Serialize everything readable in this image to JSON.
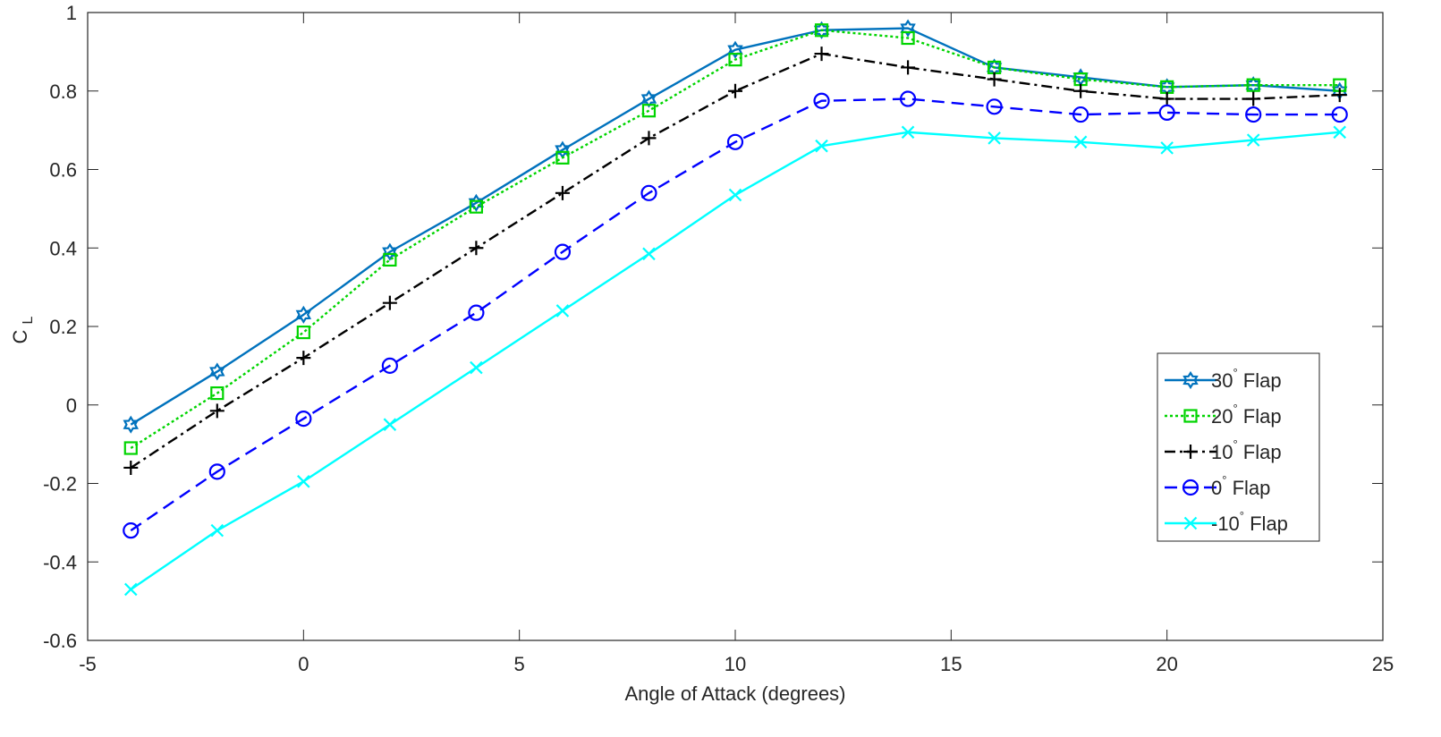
{
  "chart_data": {
    "type": "line",
    "title": "",
    "xlabel": "Angle of Attack (degrees)",
    "ylabel": "C",
    "ylabel_subscript": "L",
    "xlim": [
      -5,
      25
    ],
    "ylim": [
      -0.6,
      1
    ],
    "xticks": [
      -5,
      0,
      5,
      10,
      15,
      20,
      25
    ],
    "yticks": [
      -0.6,
      -0.4,
      -0.2,
      0,
      0.2,
      0.4,
      0.6,
      0.8,
      1
    ],
    "xtick_labels": [
      "-5",
      "0",
      "5",
      "10",
      "15",
      "20",
      "25"
    ],
    "ytick_labels": [
      "-0.6",
      "-0.4",
      "-0.2",
      "0",
      "0.2",
      "0.4",
      "0.6",
      "0.8",
      "1"
    ],
    "grid": false,
    "legend_position": "right",
    "x": [
      -4,
      -2,
      0,
      2,
      4,
      6,
      8,
      10,
      12,
      14,
      16,
      18,
      20,
      22,
      24
    ],
    "series": [
      {
        "name": "30° Flap",
        "legend_number": "30",
        "legend_suffix": " Flap",
        "color": "#0072BD",
        "line_style": "solid",
        "marker": "hexagram",
        "values": [
          -0.05,
          0.085,
          0.23,
          0.39,
          0.515,
          0.65,
          0.78,
          0.905,
          0.955,
          0.96,
          0.86,
          0.835,
          0.81,
          0.815,
          0.8
        ]
      },
      {
        "name": "20° Flap",
        "legend_number": "20",
        "legend_suffix": " Flap",
        "color": "#00D400",
        "line_style": "dotted",
        "marker": "square",
        "values": [
          -0.11,
          0.03,
          0.185,
          0.37,
          0.505,
          0.63,
          0.75,
          0.88,
          0.955,
          0.935,
          0.86,
          0.83,
          0.81,
          0.815,
          0.815
        ]
      },
      {
        "name": "10° Flap",
        "legend_number": "10",
        "legend_suffix": " Flap",
        "color": "#000000",
        "line_style": "dashdot",
        "marker": "plus",
        "values": [
          -0.16,
          -0.015,
          0.12,
          0.26,
          0.4,
          0.54,
          0.68,
          0.8,
          0.895,
          0.86,
          0.83,
          0.8,
          0.78,
          0.78,
          0.79
        ]
      },
      {
        "name": "0° Flap",
        "legend_number": "0",
        "legend_suffix": " Flap",
        "color": "#0000FF",
        "line_style": "dashed",
        "marker": "circle",
        "values": [
          -0.32,
          -0.17,
          -0.035,
          0.1,
          0.235,
          0.39,
          0.54,
          0.67,
          0.775,
          0.78,
          0.76,
          0.74,
          0.745,
          0.74,
          0.74
        ]
      },
      {
        "name": "-10° Flap",
        "legend_number": "-10",
        "legend_suffix": " Flap",
        "color": "#00FFFF",
        "line_style": "solid",
        "marker": "x",
        "values": [
          -0.47,
          -0.32,
          -0.195,
          -0.05,
          0.095,
          0.24,
          0.385,
          0.535,
          0.66,
          0.695,
          0.68,
          0.67,
          0.655,
          0.675,
          0.695
        ]
      }
    ]
  }
}
